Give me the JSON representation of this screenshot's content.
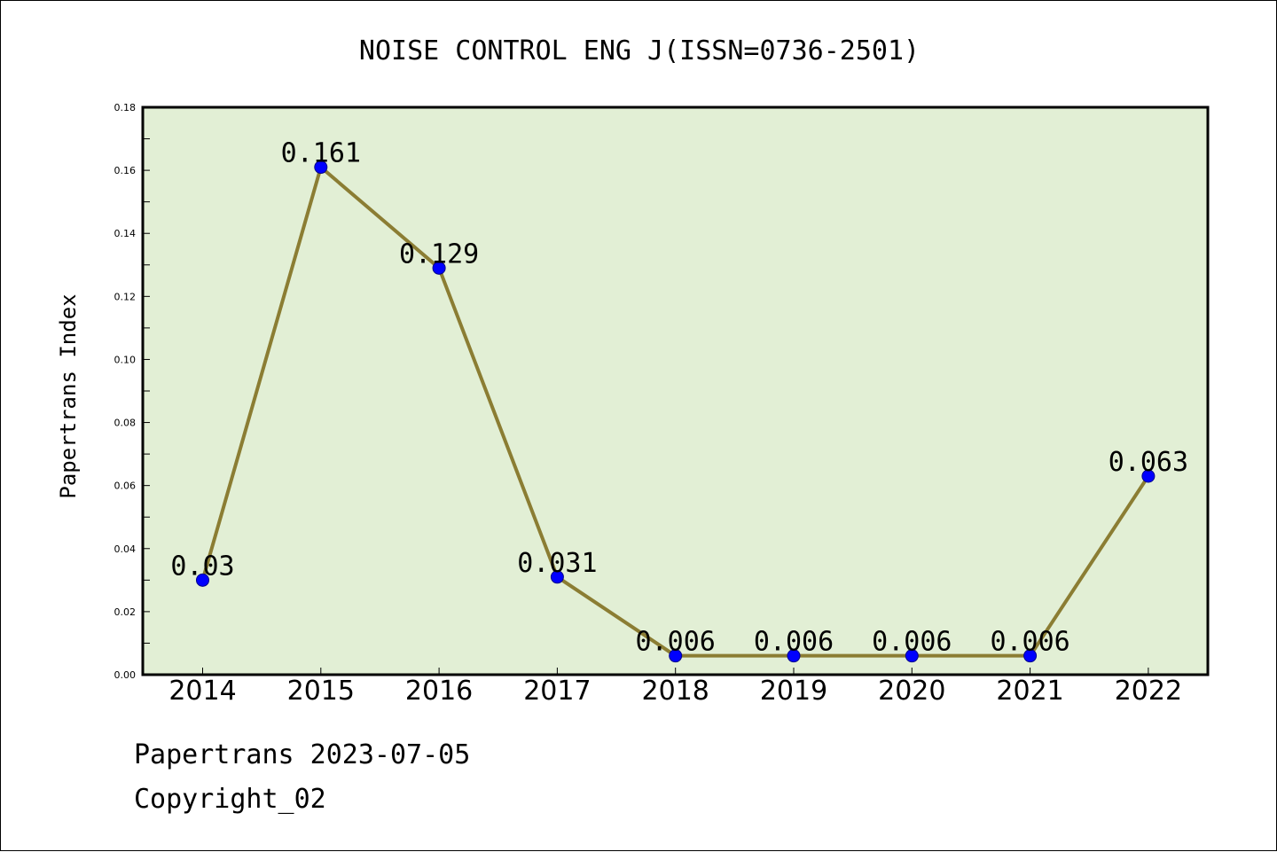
{
  "chart_data": {
    "type": "line",
    "title": "NOISE CONTROL ENG J(ISSN=0736-2501)",
    "xlabel": "",
    "ylabel": "Papertrans Index",
    "categories": [
      "2014",
      "2015",
      "2016",
      "2017",
      "2018",
      "2019",
      "2020",
      "2021",
      "2022"
    ],
    "series": [
      {
        "values": [
          0.03,
          0.161,
          0.129,
          0.031,
          0.006,
          0.006,
          0.006,
          0.006,
          0.063
        ],
        "labels": [
          "0.03",
          "0.161",
          "0.129",
          "0.031",
          "0.006",
          "0.006",
          "0.006",
          "0.006",
          "0.063"
        ]
      }
    ],
    "ylim": [
      0,
      0.18
    ],
    "yticks": [
      "0.00",
      "0.02",
      "0.04",
      "0.06",
      "0.08",
      "0.10",
      "0.12",
      "0.14",
      "0.16",
      "0.18"
    ],
    "grid": false,
    "colors": {
      "plot_bg": "#e2efd5",
      "line": "#8b7d33",
      "marker": "#0000ff"
    }
  },
  "footer": {
    "line1": "Papertrans 2023-07-05",
    "line2": "Copyright_02"
  }
}
